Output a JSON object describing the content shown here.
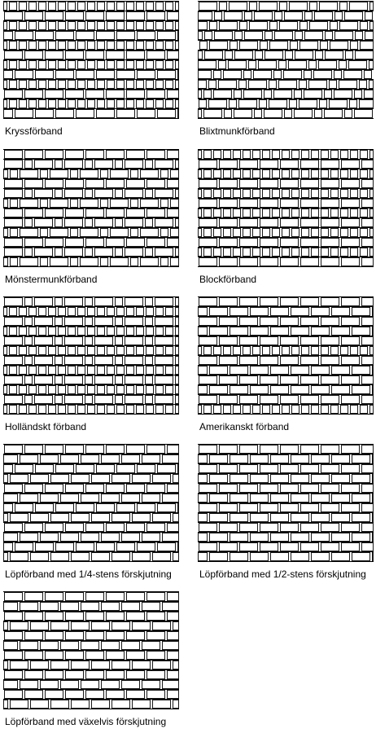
{
  "figure": {
    "line_color": "#000000",
    "background_color": "#ffffff",
    "panels": [
      {
        "caption": "Kryssförband",
        "pattern": "cross"
      },
      {
        "caption": "Blixtmunkförband",
        "pattern": "flemish-zigzag"
      },
      {
        "caption": "Mönstermunkförband",
        "pattern": "flemish-pattern"
      },
      {
        "caption": "Blockförband",
        "pattern": "english"
      },
      {
        "caption": "Holländskt förband",
        "pattern": "dutch"
      },
      {
        "caption": "Amerikanskt förband",
        "pattern": "american"
      },
      {
        "caption": "Löpförband med 1/4-stens förskjutning",
        "pattern": "running-quarter"
      },
      {
        "caption": "Löpförband med 1/2-stens förskjutning",
        "pattern": "running-half"
      },
      {
        "caption": "Löpförband med växelvis förskjutning",
        "pattern": "running-alternating"
      }
    ]
  }
}
